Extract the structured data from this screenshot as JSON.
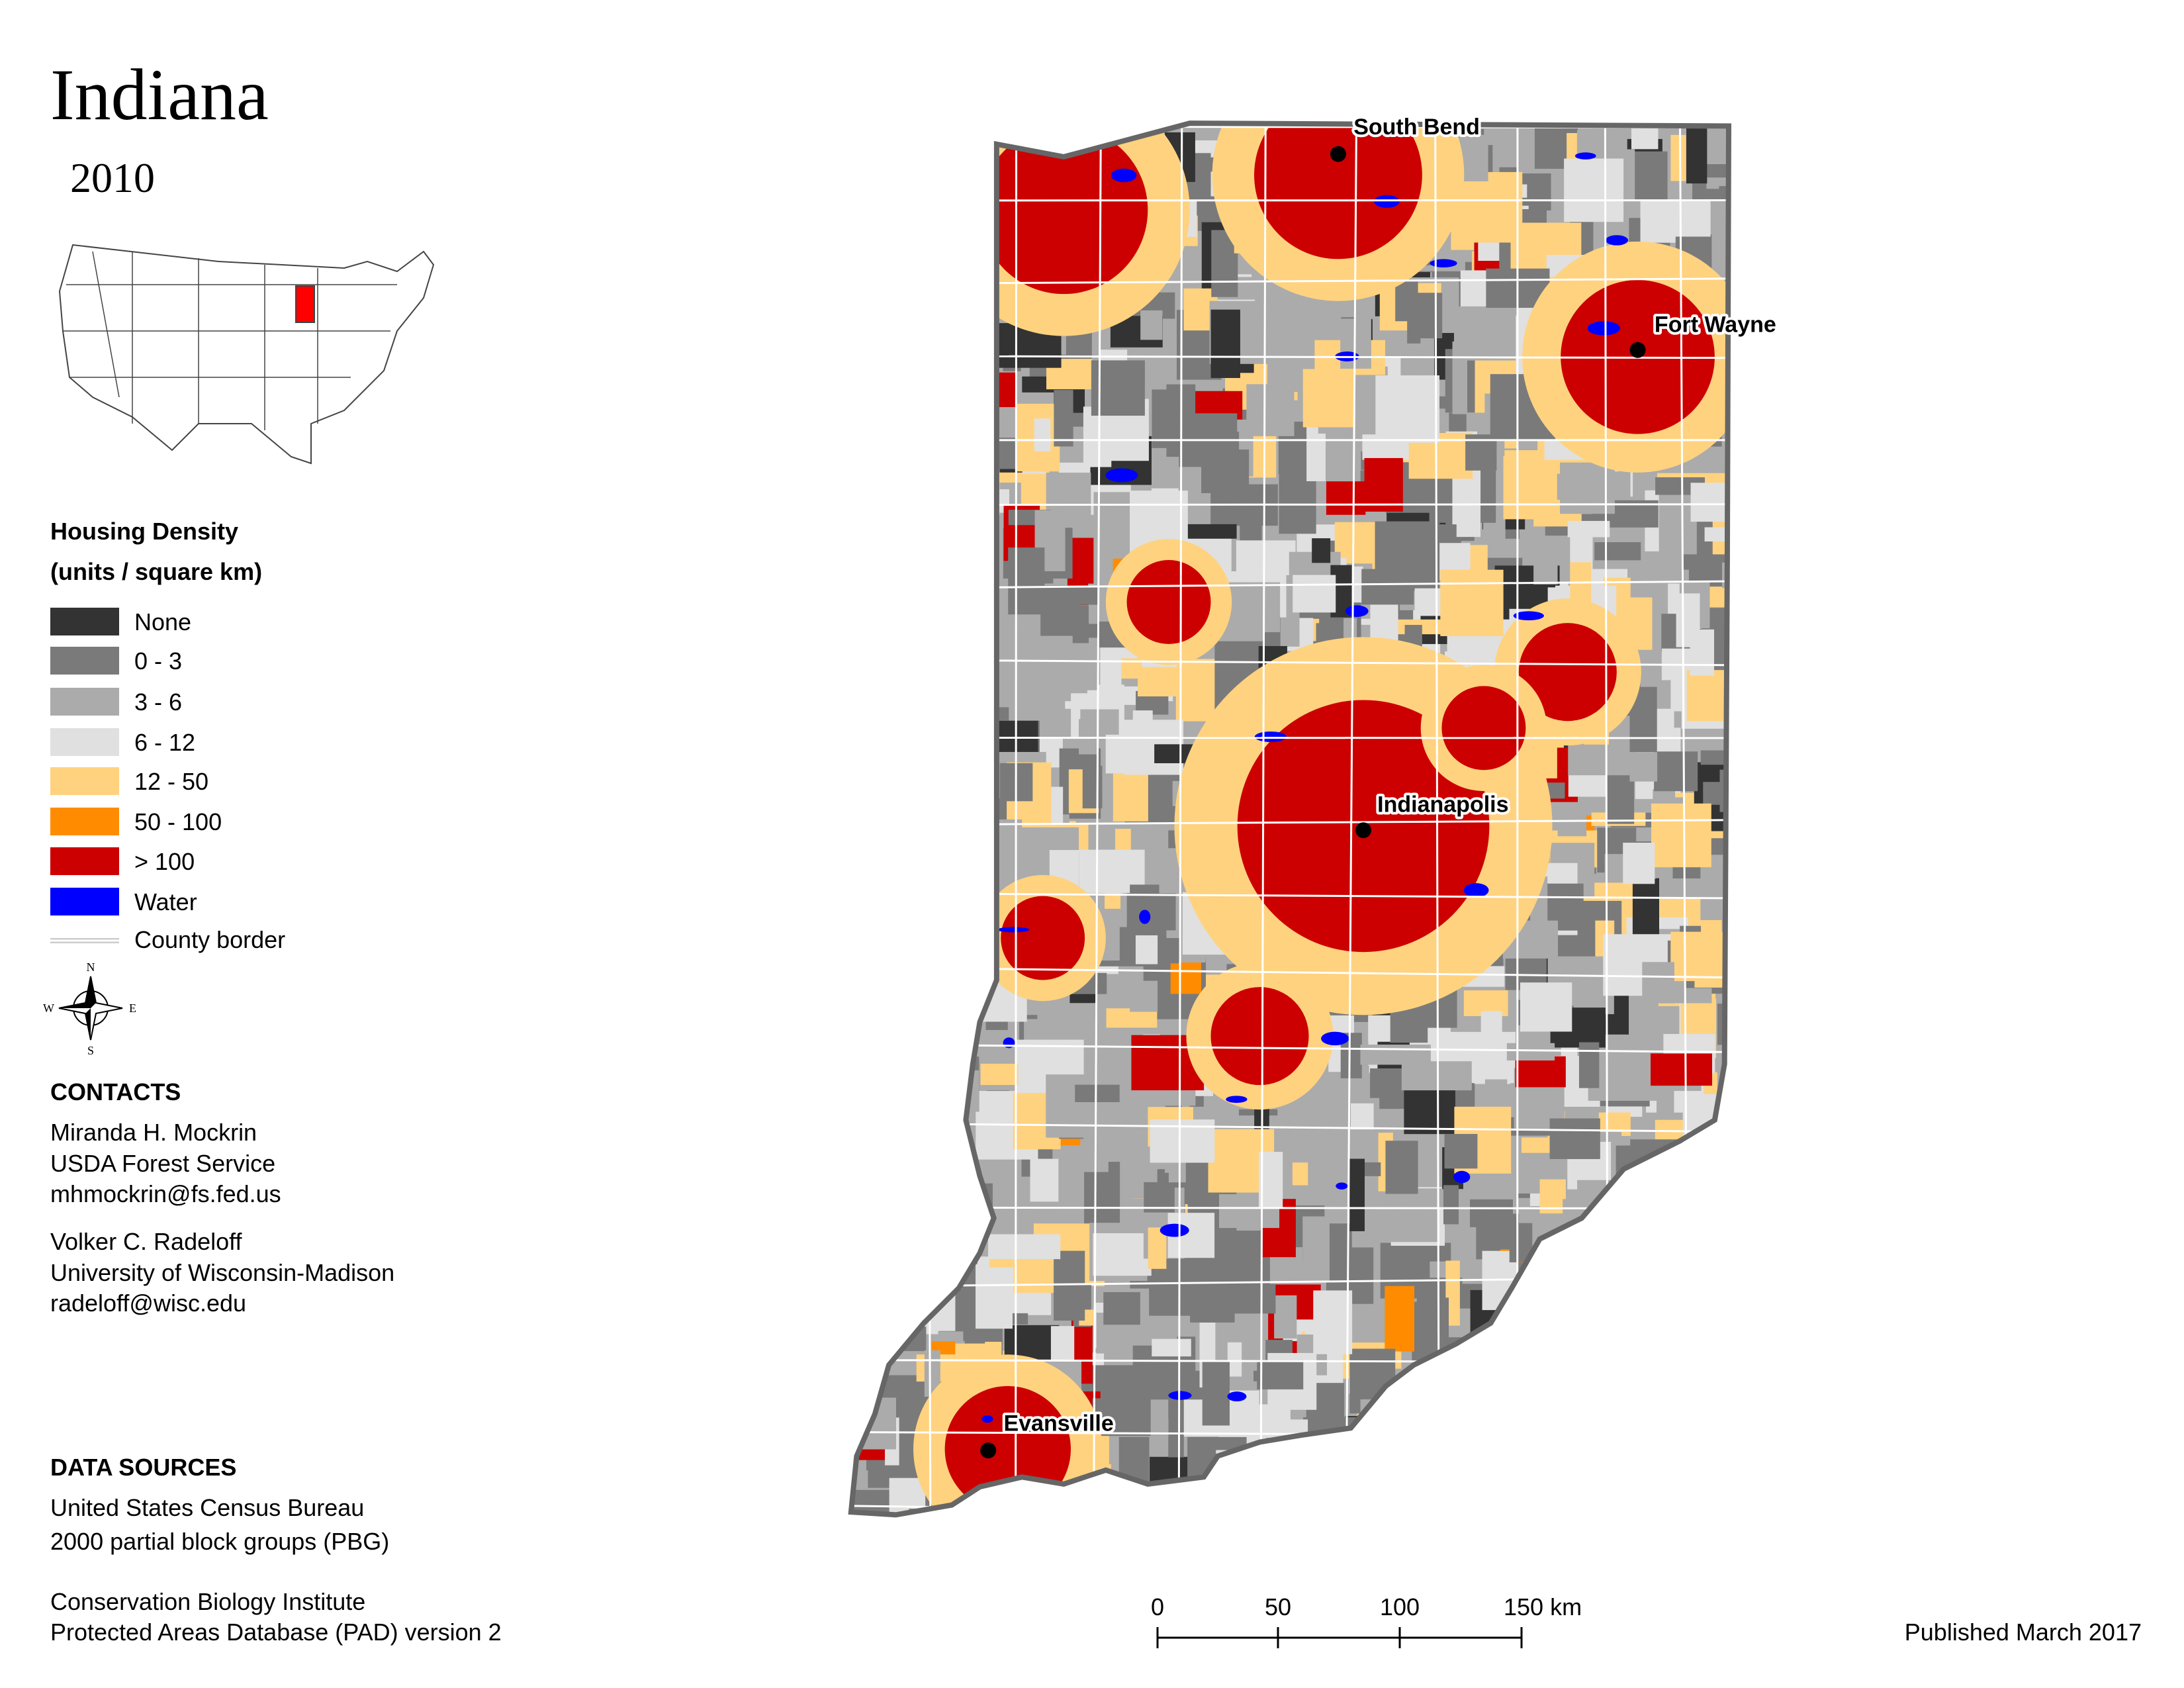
{
  "title": "Indiana",
  "year": "2010",
  "legend": {
    "title": "Housing Density",
    "subtitle": "(units / square km)",
    "items": [
      {
        "label": "None",
        "color": "#333333"
      },
      {
        "label": "0 - 3",
        "color": "#7a7a7a"
      },
      {
        "label": "3 - 6",
        "color": "#ababab"
      },
      {
        "label": "6 - 12",
        "color": "#e0e0e0"
      },
      {
        "label": "12 - 50",
        "color": "#ffd27f"
      },
      {
        "label": "50 - 100",
        "color": "#ff8c00"
      },
      {
        "label": "> 100",
        "color": "#cc0000"
      },
      {
        "label": "Water",
        "color": "#0000ff"
      }
    ],
    "border_label": "County border"
  },
  "compass": {
    "n": "N",
    "s": "S",
    "e": "E",
    "w": "W"
  },
  "contacts": {
    "title": "CONTACTS",
    "people": [
      [
        "Miranda H. Mockrin",
        "USDA Forest Service",
        "mhmockrin@fs.fed.us"
      ],
      [
        "Volker C. Radeloff",
        "University of Wisconsin-Madison",
        "radeloff@wisc.edu"
      ]
    ]
  },
  "data_sources": {
    "title": "DATA SOURCES",
    "lines": [
      "United States Census Bureau",
      "2000 partial block groups (PBG)",
      "Conservation Biology Institute",
      "Protected Areas Database (PAD) version 2"
    ]
  },
  "cities": [
    "South Bend",
    "Fort Wayne",
    "Indianapolis",
    "Evansville"
  ],
  "scale_labels": [
    "0",
    "50",
    "100",
    "150 km"
  ],
  "published": "Published March 2017"
}
